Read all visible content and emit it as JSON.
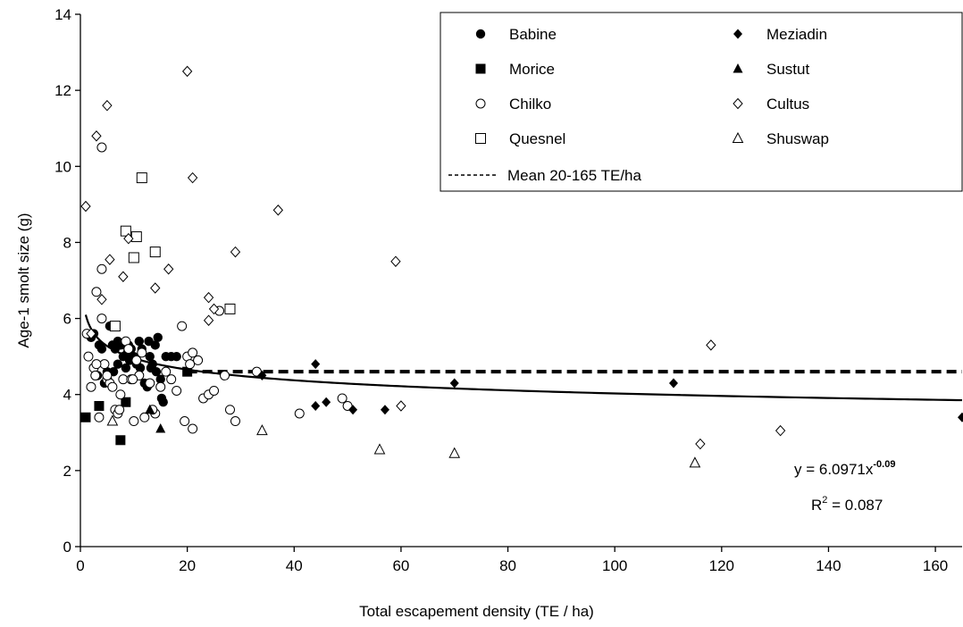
{
  "chart_data": {
    "type": "scatter",
    "xlabel": "Total escapement density (TE / ha)",
    "ylabel": "Age-1 smolt size (g)",
    "xlim": [
      0,
      165
    ],
    "ylim": [
      0,
      14
    ],
    "x_ticks": [
      0,
      20,
      40,
      60,
      80,
      100,
      120,
      140,
      160
    ],
    "y_ticks": [
      0,
      2,
      4,
      6,
      8,
      10,
      12,
      14
    ],
    "x_tick_labels": [
      "0",
      "20",
      "40",
      "60",
      "80",
      "100",
      "120",
      "140",
      "160"
    ],
    "y_tick_labels": [
      "0",
      "2",
      "4",
      "6",
      "8",
      "10",
      "12",
      "14"
    ],
    "grid": false,
    "legend_position": "top-right",
    "series": [
      {
        "name": "Babine",
        "marker": "circle-filled",
        "points": [
          [
            2,
            5.5
          ],
          [
            2.5,
            5.6
          ],
          [
            3,
            4.5
          ],
          [
            3.5,
            5.3
          ],
          [
            4,
            5.2
          ],
          [
            4.5,
            4.3
          ],
          [
            5,
            4.6
          ],
          [
            5.5,
            5.8
          ],
          [
            6,
            5.3
          ],
          [
            6.5,
            5.2
          ],
          [
            7,
            4.8
          ],
          [
            7,
            5.4
          ],
          [
            7.5,
            5.3
          ],
          [
            8,
            5.0
          ],
          [
            8.2,
            5.3
          ],
          [
            8.5,
            4.7
          ],
          [
            9,
            5.3
          ],
          [
            9.5,
            5.2
          ],
          [
            10,
            5.0
          ],
          [
            10.5,
            4.8
          ],
          [
            11,
            5.4
          ],
          [
            11.5,
            5.2
          ],
          [
            12,
            4.3
          ],
          [
            12.5,
            4.2
          ],
          [
            13,
            5.0
          ],
          [
            13.5,
            4.8
          ],
          [
            14,
            5.3
          ],
          [
            14.5,
            5.5
          ],
          [
            15,
            4.4
          ],
          [
            15.5,
            3.8
          ],
          [
            16,
            5.0
          ],
          [
            17,
            5.0
          ],
          [
            18,
            5.0
          ],
          [
            3.2,
            4.5
          ],
          [
            6.2,
            4.6
          ],
          [
            8.8,
            5.1
          ],
          [
            9.2,
            4.9
          ],
          [
            11.2,
            4.7
          ],
          [
            13.2,
            4.7
          ],
          [
            14.2,
            4.6
          ],
          [
            15.2,
            3.9
          ],
          [
            12.8,
            5.4
          ]
        ]
      },
      {
        "name": "Morice",
        "marker": "square-filled",
        "points": [
          [
            1,
            3.4
          ],
          [
            3.5,
            3.7
          ],
          [
            7.5,
            2.8
          ],
          [
            8.5,
            3.8
          ],
          [
            20,
            4.6
          ]
        ]
      },
      {
        "name": "Chilko",
        "marker": "circle-open",
        "points": [
          [
            1.2,
            5.6
          ],
          [
            1.5,
            5.0
          ],
          [
            2,
            4.2
          ],
          [
            2.5,
            4.7
          ],
          [
            2.8,
            4.5
          ],
          [
            3,
            6.7
          ],
          [
            3.5,
            3.4
          ],
          [
            4,
            6.0
          ],
          [
            4.5,
            4.8
          ],
          [
            5,
            4.4
          ],
          [
            5.5,
            4.3
          ],
          [
            6,
            4.2
          ],
          [
            6.5,
            3.6
          ],
          [
            7,
            3.5
          ],
          [
            7.5,
            4.0
          ],
          [
            8,
            4.4
          ],
          [
            8.5,
            5.4
          ],
          [
            9,
            5.2
          ],
          [
            9.5,
            4.4
          ],
          [
            10,
            3.3
          ],
          [
            10.5,
            4.9
          ],
          [
            11,
            4.5
          ],
          [
            11.5,
            5.1
          ],
          [
            12,
            3.4
          ],
          [
            13,
            4.3
          ],
          [
            14,
            3.5
          ],
          [
            15,
            4.2
          ],
          [
            16,
            4.6
          ],
          [
            17,
            4.4
          ],
          [
            18,
            4.1
          ],
          [
            19,
            5.8
          ],
          [
            20,
            5.0
          ],
          [
            20.5,
            4.8
          ],
          [
            21,
            5.1
          ],
          [
            22,
            4.9
          ],
          [
            23,
            3.9
          ],
          [
            24,
            4.0
          ],
          [
            25,
            4.1
          ],
          [
            27,
            4.5
          ],
          [
            28,
            3.6
          ],
          [
            29,
            3.3
          ],
          [
            33,
            4.6
          ],
          [
            41,
            3.5
          ],
          [
            49,
            3.9
          ],
          [
            50,
            3.7
          ],
          [
            21,
            3.1
          ],
          [
            19.5,
            3.3
          ],
          [
            26,
            6.2
          ],
          [
            4,
            10.5
          ],
          [
            4,
            7.3
          ],
          [
            3,
            4.8
          ],
          [
            5,
            4.5
          ],
          [
            7.3,
            3.6
          ],
          [
            9.8,
            4.4
          ],
          [
            13.5,
            3.6
          ]
        ]
      },
      {
        "name": "Quesnel",
        "marker": "square-open",
        "points": [
          [
            6.5,
            5.8
          ],
          [
            8.5,
            8.3
          ],
          [
            10.5,
            8.15
          ],
          [
            11.5,
            9.7
          ],
          [
            10,
            7.6
          ],
          [
            14,
            7.75
          ],
          [
            28,
            6.25
          ]
        ]
      },
      {
        "name": "Meziadin",
        "marker": "diamond-filled",
        "points": [
          [
            34,
            4.5
          ],
          [
            44,
            4.8
          ],
          [
            44,
            3.7
          ],
          [
            46,
            3.8
          ],
          [
            51,
            3.6
          ],
          [
            57,
            3.6
          ],
          [
            70,
            4.3
          ],
          [
            111,
            4.3
          ],
          [
            165,
            3.4
          ]
        ]
      },
      {
        "name": "Sustut",
        "marker": "triangle-filled",
        "points": [
          [
            13,
            3.6
          ],
          [
            15,
            3.1
          ]
        ]
      },
      {
        "name": "Cultus",
        "marker": "diamond-open",
        "points": [
          [
            1,
            8.95
          ],
          [
            2,
            5.6
          ],
          [
            3,
            10.8
          ],
          [
            4,
            6.5
          ],
          [
            5,
            11.6
          ],
          [
            5.5,
            7.55
          ],
          [
            8,
            7.1
          ],
          [
            9,
            8.1
          ],
          [
            14,
            6.8
          ],
          [
            16.5,
            7.3
          ],
          [
            20,
            12.5
          ],
          [
            21,
            9.7
          ],
          [
            24,
            6.55
          ],
          [
            24,
            5.95
          ],
          [
            25,
            6.25
          ],
          [
            29,
            7.75
          ],
          [
            37,
            8.85
          ],
          [
            59,
            7.5
          ],
          [
            60,
            3.7
          ],
          [
            116,
            2.7
          ],
          [
            118,
            5.3
          ],
          [
            131,
            3.05
          ]
        ]
      },
      {
        "name": "Shuswap",
        "marker": "triangle-open",
        "points": [
          [
            6,
            3.3
          ],
          [
            34,
            3.05
          ],
          [
            56,
            2.55
          ],
          [
            70,
            2.45
          ],
          [
            115,
            2.2
          ]
        ]
      }
    ],
    "reference_line": {
      "name": "Mean 20-165 TE/ha",
      "y": 4.6,
      "x_range": [
        20,
        165
      ],
      "style": "dashed"
    },
    "fit": {
      "a": 6.0971,
      "b": -0.09,
      "x_range": [
        1,
        165
      ]
    },
    "annotations": {
      "equation_prefix": "y = 6.0971x",
      "equation_exponent": "-0.09",
      "r2_prefix": "R",
      "r2_superscript": "2",
      "r2_suffix": " = 0.087"
    }
  }
}
